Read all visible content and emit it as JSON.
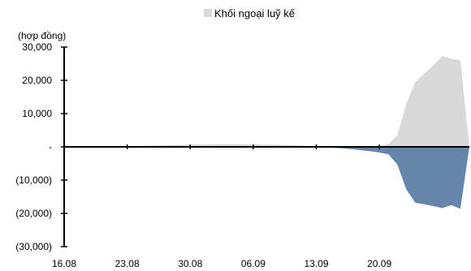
{
  "chart_data": {
    "type": "area",
    "title": "",
    "xlabel": "",
    "ylabel": "(hợp đồng)",
    "ylim": [
      -30000,
      30000
    ],
    "y_ticks": [
      30000,
      20000,
      10000,
      0,
      -10000,
      -20000,
      -30000
    ],
    "y_tick_labels": [
      "30,000",
      "20,000",
      "10,000",
      "-",
      "(10,000)",
      "(20,000)",
      "(30,000)"
    ],
    "x_tick_labels": [
      "16.08",
      "23.08",
      "30.08",
      "06.09",
      "13.09",
      "20.09"
    ],
    "legend": {
      "position": "top-center",
      "visible_entries": [
        "Khối ngoại luỹ kế"
      ]
    },
    "grid": false,
    "colors": {
      "positive_area": "#d9d9d9",
      "negative_area": "#6685ab",
      "axis": "#000000"
    },
    "x": [
      0,
      1,
      2,
      3,
      4,
      5,
      6,
      7,
      8,
      9,
      10,
      11,
      12,
      13,
      14,
      15,
      16,
      17,
      18,
      19,
      20,
      21,
      22,
      23,
      24,
      25,
      26,
      27,
      28,
      29,
      30,
      31,
      32,
      33,
      34,
      35,
      36,
      37,
      38,
      39,
      40,
      41,
      42,
      43,
      44,
      45
    ],
    "series": [
      {
        "values": [
          0,
          0,
          0,
          0,
          0,
          0,
          0,
          100,
          300,
          400,
          450,
          500,
          550,
          600,
          650,
          700,
          750,
          800,
          800,
          800,
          800,
          750,
          700,
          650,
          600,
          550,
          500,
          300,
          0,
          0,
          0,
          0,
          0,
          0,
          100,
          300,
          800,
          3500,
          13000,
          19500,
          22000,
          24500,
          27300,
          26500,
          26000,
          0
        ]
      },
      {
        "values": [
          0,
          0,
          0,
          0,
          0,
          0,
          0,
          0,
          0,
          0,
          0,
          0,
          0,
          0,
          0,
          0,
          0,
          0,
          0,
          0,
          0,
          0,
          0,
          0,
          0,
          0,
          0,
          0,
          -100,
          -200,
          -300,
          -500,
          -700,
          -1000,
          -1300,
          -1700,
          -2200,
          -5300,
          -12800,
          -16800,
          -17300,
          -17800,
          -18400,
          -17500,
          -18600,
          0
        ]
      }
    ]
  }
}
